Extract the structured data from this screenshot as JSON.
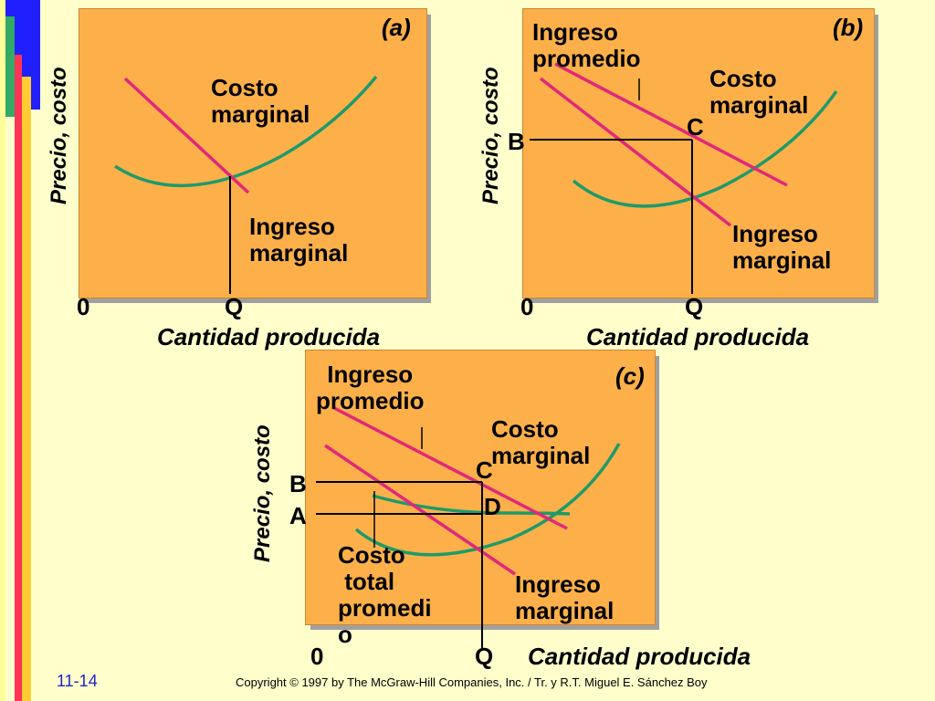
{
  "slide_number": "11-14",
  "copyright": "Copyright © 1997 by The McGraw-Hill Companies, Inc. / Tr. y R.T. Miguel E. Sánchez Boy",
  "colors": {
    "background": "#ffffcc",
    "panel": "#fdb04a",
    "revenue_line": "#e0287a",
    "cost_curve": "#1e9a6a"
  },
  "panel_a": {
    "tag": "(a)",
    "y_axis": "Precio, costo",
    "x_axis": "Cantidad producida",
    "origin": "0",
    "q": "Q",
    "cost_label": "Costo\nmarginal",
    "revenue_label": "Ingreso\nmarginal"
  },
  "panel_b": {
    "tag": "(b)",
    "y_axis": "Precio, costo",
    "x_axis": "Cantidad producida",
    "origin": "0",
    "q": "Q",
    "b": "B",
    "c": "C",
    "avg_label": "Ingreso\npromedio",
    "cost_label": "Costo\nmarginal",
    "revenue_label": "Ingreso\nmarginal"
  },
  "panel_c": {
    "tag": "(c)",
    "y_axis": "Precio, costo",
    "x_axis": "Cantidad producida",
    "origin": "0",
    "q": "Q",
    "b": "B",
    "a": "A",
    "c": "C",
    "d": "D",
    "avg_label": "Ingreso\npromedio",
    "cost_label": "Costo\nmarginal",
    "atc_label": "Costo\n total\npromedi\no",
    "revenue_label": "Ingreso\nmarginal"
  }
}
